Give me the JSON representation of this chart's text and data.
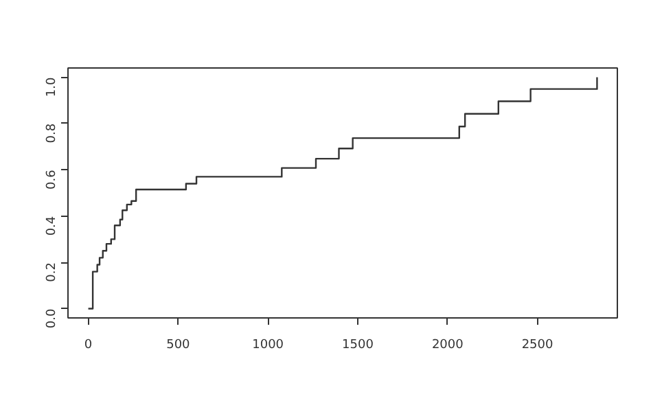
{
  "chart_data": {
    "type": "step",
    "x": [
      0,
      25,
      50,
      63,
      81,
      101,
      127,
      147,
      177,
      190,
      215,
      240,
      266,
      544,
      602,
      1077,
      1267,
      1395,
      1472,
      2065,
      2097,
      2283,
      2462,
      2832
    ],
    "values": [
      0,
      0.16,
      0.19,
      0.22,
      0.25,
      0.28,
      0.3,
      0.36,
      0.385,
      0.425,
      0.45,
      0.465,
      0.515,
      0.54,
      0.57,
      0.608,
      0.648,
      0.692,
      0.737,
      0.787,
      0.842,
      0.896,
      0.949,
      1.0
    ],
    "color": "#333333",
    "xlim": [
      -113,
      2945
    ],
    "ylim": [
      -0.04,
      1.04
    ],
    "xticks": [
      0,
      500,
      1000,
      1500,
      2000,
      2500
    ],
    "yticks": [
      {
        "value": 0,
        "label": "0.0"
      },
      {
        "value": 0.2,
        "label": "0.2"
      },
      {
        "value": 0.4,
        "label": "0.4"
      },
      {
        "value": 0.6,
        "label": "0.6"
      },
      {
        "value": 0.8,
        "label": "0.8"
      },
      {
        "value": 1.0,
        "label": "1.0"
      }
    ],
    "grid": false,
    "line_style": "solid"
  }
}
